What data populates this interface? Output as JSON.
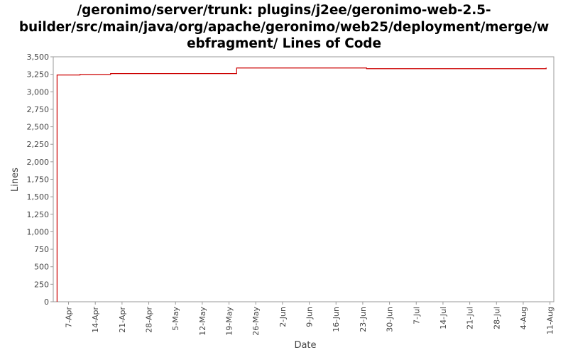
{
  "title_lines": [
    "/geronimo/server/trunk: plugins/j2ee/geronimo-web-2.5-",
    "builder/src/main/java/org/apache/geronimo/web25/deployment/merge/w",
    "ebfragment/ Lines of Code"
  ],
  "chart_data": {
    "type": "line",
    "title": "/geronimo/server/trunk: plugins/j2ee/geronimo-web-2.5-builder/src/main/java/org/apache/geronimo/web25/deployment/merge/webfragment/ Lines of Code",
    "xlabel": "Date",
    "ylabel": "Lines",
    "ylim": [
      0,
      3500
    ],
    "yticks": [
      0,
      250,
      500,
      750,
      1000,
      1250,
      1500,
      1750,
      2000,
      2250,
      2500,
      2750,
      3000,
      3250,
      3500
    ],
    "ytick_labels": [
      "0",
      "250",
      "500",
      "750",
      "1,000",
      "1,250",
      "1,500",
      "1,750",
      "2,000",
      "2,250",
      "2,500",
      "2,750",
      "3,000",
      "3,250",
      "3,500"
    ],
    "xlim": [
      "03-Apr",
      "12-Aug"
    ],
    "xticks": [
      "7-Apr",
      "14-Apr",
      "21-Apr",
      "28-Apr",
      "5-May",
      "12-May",
      "19-May",
      "26-May",
      "2-Jun",
      "9-Jun",
      "16-Jun",
      "23-Jun",
      "30-Jun",
      "7-Jul",
      "14-Jul",
      "21-Jul",
      "28-Jul",
      "4-Aug",
      "11-Aug"
    ],
    "grid": false,
    "legend": "none",
    "step": true,
    "series": [
      {
        "color": "#cc0000",
        "x": [
          "4-Apr",
          "4-Apr",
          "10-Apr",
          "18-Apr",
          "21-May",
          "24-Jun",
          "10-Aug",
          "10-Aug"
        ],
        "y": [
          0,
          3240,
          3248,
          3260,
          3340,
          3330,
          3330,
          3345
        ]
      }
    ]
  }
}
